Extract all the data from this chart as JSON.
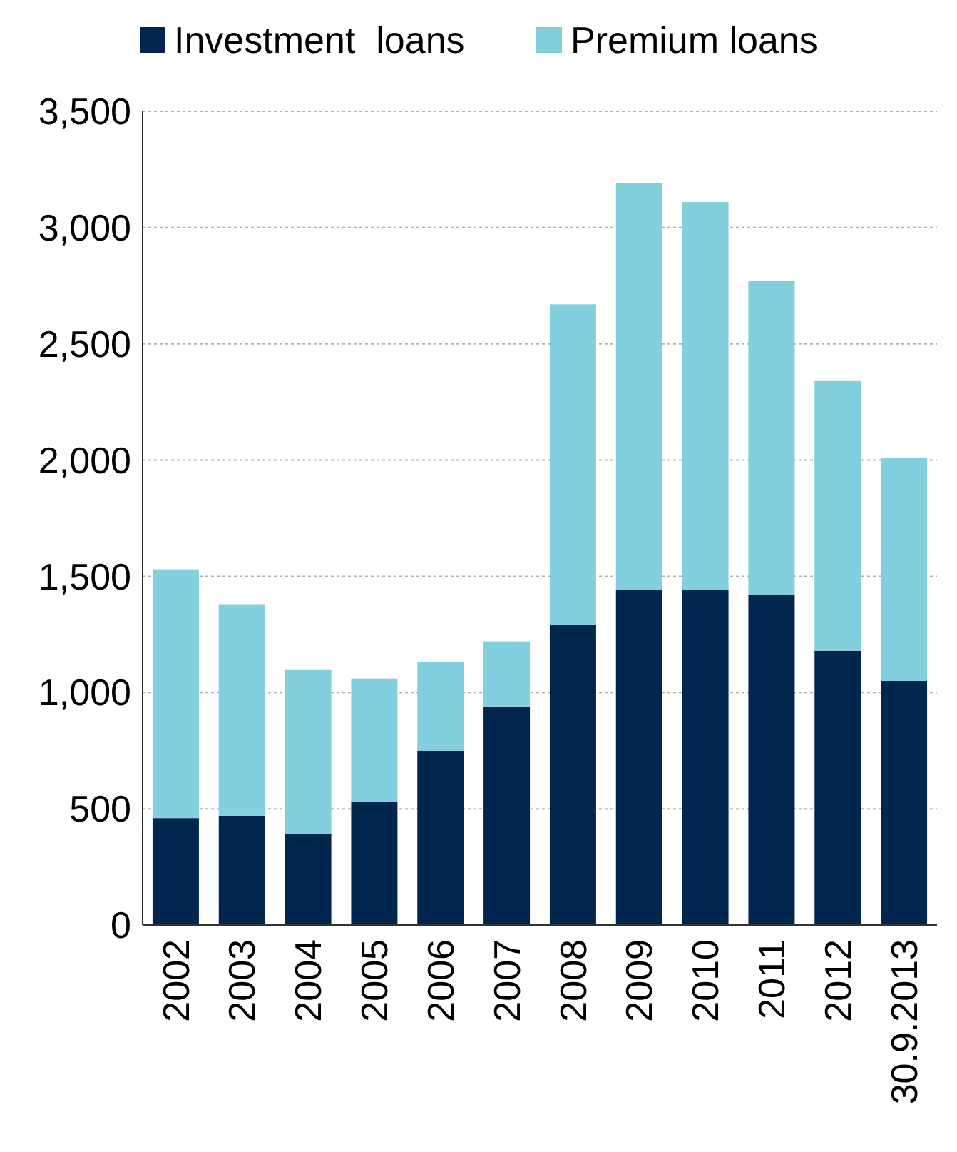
{
  "chart_data": {
    "type": "bar",
    "stacked": true,
    "categories": [
      "2002",
      "2003",
      "2004",
      "2005",
      "2006",
      "2007",
      "2008",
      "2009",
      "2010",
      "2011",
      "2012",
      "30.9.2013"
    ],
    "series": [
      {
        "name": "Investment  loans",
        "color": "#00264d",
        "values": [
          460,
          470,
          390,
          530,
          750,
          940,
          1290,
          1440,
          1440,
          1420,
          1180,
          1050
        ]
      },
      {
        "name": "Premium loans",
        "color": "#82d0de",
        "values": [
          1070,
          910,
          710,
          530,
          380,
          280,
          1380,
          1750,
          1670,
          1350,
          1160,
          960
        ]
      }
    ],
    "ylim": [
      0,
      3500
    ],
    "yticks": [
      0,
      500,
      {
        "value": 1000,
        "label": "1,000"
      },
      {
        "value": 1500,
        "label": "1,500"
      },
      {
        "value": 2000,
        "label": "2,000"
      },
      {
        "value": 2500,
        "label": "2,500"
      },
      {
        "value": 3000,
        "label": "3,000"
      },
      {
        "value": 3500,
        "label": "3,500"
      }
    ],
    "grid": "y",
    "legend": "top"
  }
}
